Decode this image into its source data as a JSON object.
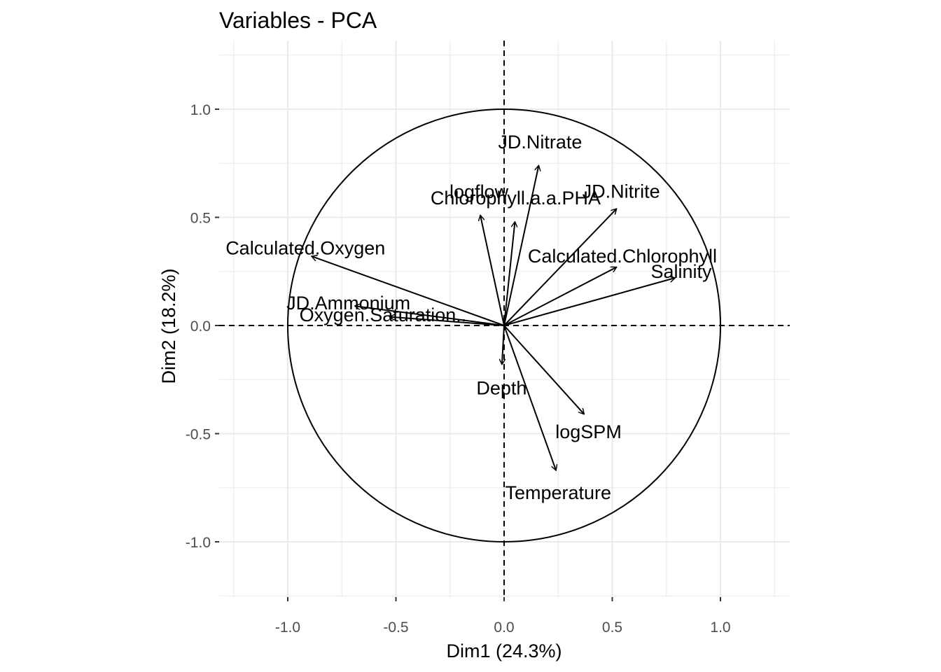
{
  "chart_data": {
    "type": "scatter",
    "subtype": "pca-variables-correlation-circle",
    "title": "Variables - PCA",
    "xlabel": "Dim1 (24.3%)",
    "ylabel": "Dim2 (18.2%)",
    "xlim": [
      -1.3,
      1.3
    ],
    "ylim": [
      -1.26,
      1.26
    ],
    "xticks": [
      -1.0,
      -0.5,
      0.0,
      0.5,
      1.0
    ],
    "xtick_labels": [
      "-1.0",
      "-0.5",
      "0.0",
      "0.5",
      "1.0"
    ],
    "yticks": [
      -1.0,
      -0.5,
      0.0,
      0.5,
      1.0
    ],
    "ytick_labels": [
      "-1.0",
      "-0.5",
      "0.0",
      "0.5",
      "1.0"
    ],
    "grid": true,
    "unit_circle": true,
    "reference_lines": "dashed at x=0 and y=0",
    "variables": [
      {
        "name": "JD.Nitrate",
        "x": 0.16,
        "y": 0.74
      },
      {
        "name": "JD.Nitrite",
        "x": 0.52,
        "y": 0.54
      },
      {
        "name": "logflow",
        "x": -0.11,
        "y": 0.51
      },
      {
        "name": "Chlorophyll.a.a.PHA",
        "x": 0.05,
        "y": 0.48
      },
      {
        "name": "Calculated.Chlorophyll",
        "x": 0.52,
        "y": 0.27
      },
      {
        "name": "Salinity",
        "x": 0.79,
        "y": 0.22
      },
      {
        "name": "Calculated.Oxygen",
        "x": -0.89,
        "y": 0.32
      },
      {
        "name": "JD.Ammonium",
        "x": -0.69,
        "y": 0.09
      },
      {
        "name": "Oxygen.Saturation..",
        "x": -0.53,
        "y": 0.04
      },
      {
        "name": "Depth",
        "x": -0.01,
        "y": -0.18
      },
      {
        "name": "logSPM",
        "x": 0.37,
        "y": -0.41
      },
      {
        "name": "Temperature",
        "x": 0.24,
        "y": -0.67
      }
    ]
  }
}
